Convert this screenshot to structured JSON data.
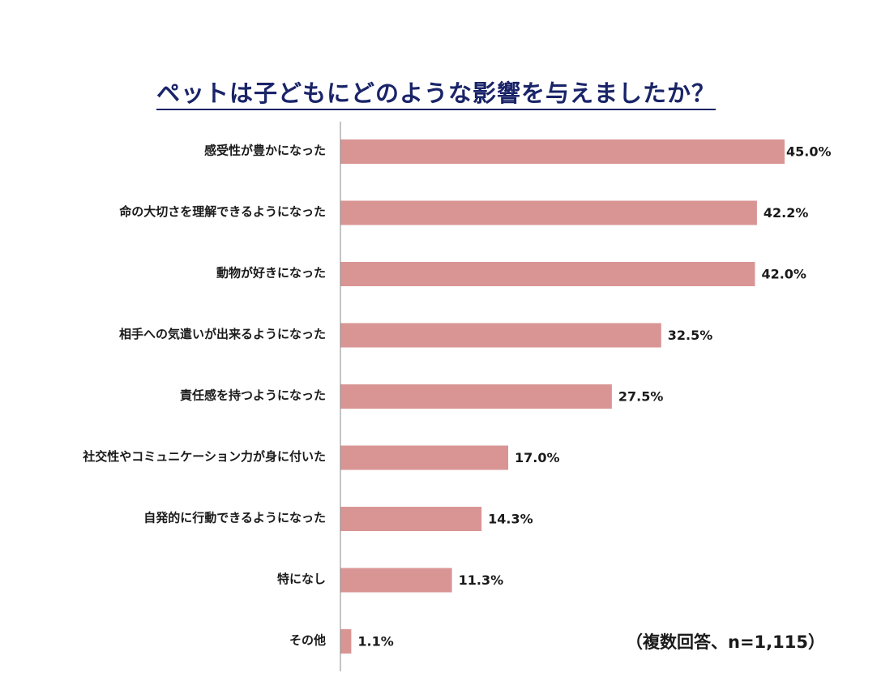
{
  "chart_data": {
    "type": "bar",
    "orientation": "horizontal",
    "title": "ペットは子どもにどのような影響を与えましたか？",
    "categories": [
      "感受性が豊かになった",
      "命の大切さを理解できるようになった",
      "動物が好きになった",
      "相手への気遣いが出来るようになった",
      "責任感を持つようになった",
      "社交性やコミュニケーション力が身に付いた",
      "自発的に行動できるようになった",
      "特になし",
      "その他"
    ],
    "values": [
      45.0,
      42.2,
      42.0,
      32.5,
      27.5,
      17.0,
      14.3,
      11.3,
      1.1
    ],
    "value_labels": [
      "45.0%",
      "42.2%",
      "42.0%",
      "32.5%",
      "27.5%",
      "17.0%",
      "14.3%",
      "11.3%",
      "1.1%"
    ],
    "unit": "%",
    "xlim": [
      0,
      45
    ],
    "grid": false,
    "bar_color": "#d99594",
    "axis_color": "#888888",
    "note": "（複数回答、n=1,115）"
  }
}
